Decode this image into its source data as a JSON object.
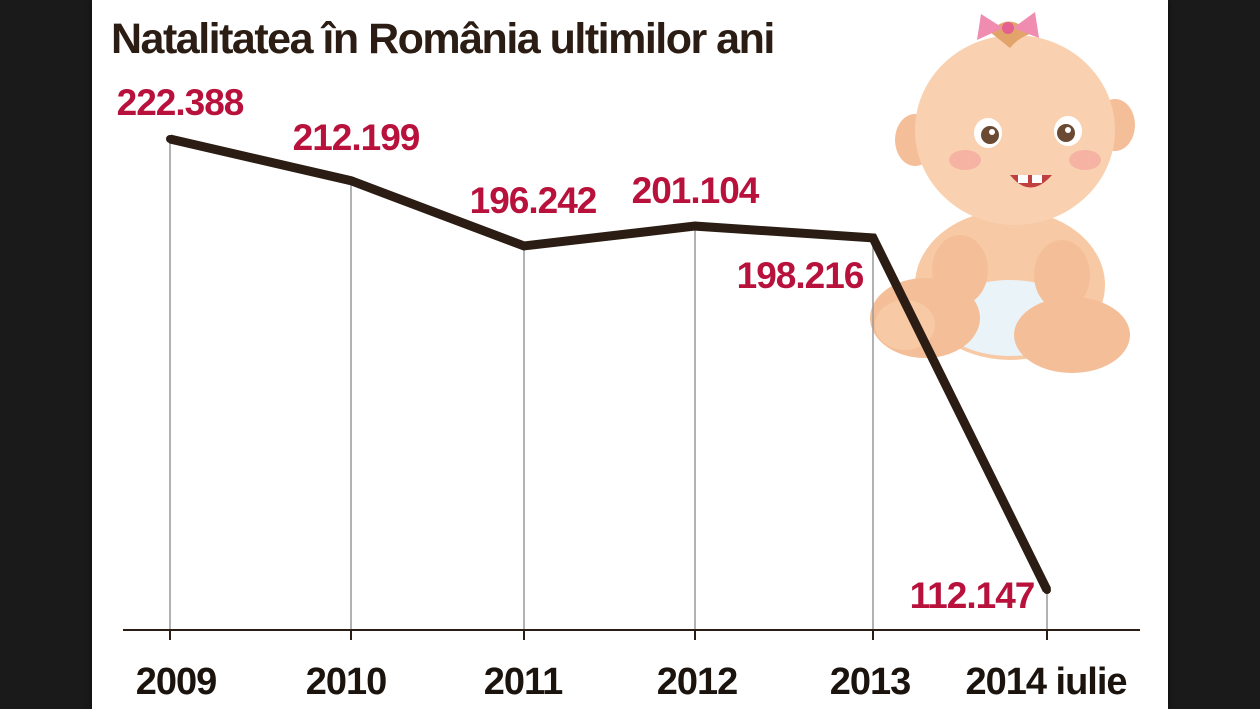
{
  "chart_data": {
    "type": "line",
    "title": "Natalitatea în România ultimilor ani",
    "categories": [
      "2009",
      "2010",
      "2011",
      "2012",
      "2013",
      "2014 iulie"
    ],
    "series": [
      {
        "values": [
          222388,
          212199,
          196242,
          201104,
          198216,
          112147
        ]
      }
    ],
    "data_labels": [
      "222.388",
      "212.199",
      "196.242",
      "201.104",
      "198.216",
      "112.147"
    ],
    "xlabel": "",
    "ylabel": "",
    "grid": "vertical drop lines",
    "legend": "none"
  },
  "illustration": {
    "icon": "baby-icon"
  },
  "colors": {
    "background": "#1a1a1a",
    "panel": "#ffffff",
    "line": "#2b1d14",
    "label": "#b8123c",
    "grid": "#999999",
    "axis": "#2b1d14"
  }
}
